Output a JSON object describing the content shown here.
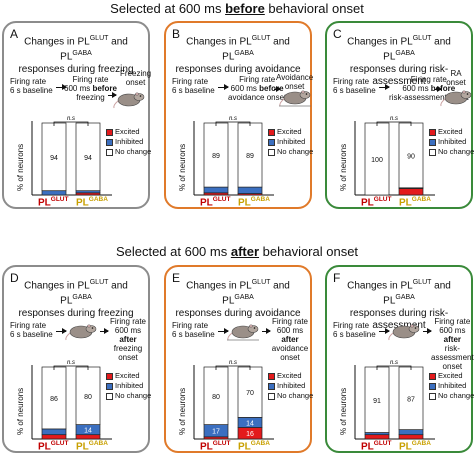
{
  "colors": {
    "excited": "#e31a1c",
    "inhibited": "#3b6fc0",
    "nochange": "#ffffff",
    "glut": "#c00000",
    "gaba": "#c8a000",
    "freeze_border": "#8c8c8c",
    "avoid_border": "#e07a2a",
    "risk_border": "#3a8a3a"
  },
  "section_top": {
    "pre": "Selected at 600 ms ",
    "bold": "before",
    "post": " behavioral onset"
  },
  "section_bottom": {
    "pre": "Selected at 600 ms ",
    "bold": "after",
    "post": " behavioral onset"
  },
  "common": {
    "firing_rate": "Firing rate",
    "baseline": "6 s baseline",
    "ms600": "600 ms",
    "ylabel": "% of neurons",
    "ns": "n.s",
    "excited": "Excited",
    "inhibited": "Inhibited",
    "nochange": "No change",
    "pl": "PL",
    "glut": "GLUT",
    "gaba": "GABA",
    "changes_in": "Changes in PL",
    "and_pl": " and PL",
    "firing_rate_line": "Firing rate",
    "before": "before",
    "after": "after"
  },
  "panels": [
    {
      "id": "A",
      "t2": "responses during freezing",
      "mid2": "freezing",
      "onset": "Freezing onset",
      "kind": "freeze",
      "when": "before",
      "icon": "freezing-rat-icon"
    },
    {
      "id": "B",
      "t2": "responses during avoidance",
      "mid2": "avoidance onset",
      "onset": "Avoidance onset",
      "kind": "avoid",
      "when": "before",
      "icon": "avoiding-rat-icon"
    },
    {
      "id": "C",
      "t2": "responses during risk-assessment",
      "mid2": "risk-assessment onset",
      "onset": "RA onset",
      "kind": "risk",
      "when": "before",
      "icon": "risk-assessment-rat-icon"
    },
    {
      "id": "D",
      "t2": "responses during freezing",
      "mid2": "freezing onset",
      "onset": "",
      "kind": "freeze",
      "when": "after",
      "icon": "freezing-rat-icon"
    },
    {
      "id": "E",
      "t2": "responses during avoidance",
      "mid2": "avoidance onset",
      "onset": "",
      "kind": "avoid",
      "when": "after",
      "icon": "avoiding-rat-icon"
    },
    {
      "id": "F",
      "t2": "responses during risk-assessment",
      "mid2": "risk-assessment onset",
      "onset": "",
      "kind": "risk",
      "when": "after",
      "icon": "risk-assessment-rat-icon"
    }
  ],
  "chart_data": [
    {
      "panel": "A",
      "type": "bar",
      "stacked": true,
      "categories": [
        "PLGLUT",
        "PLGABA"
      ],
      "series": [
        {
          "name": "Excited",
          "values": [
            0,
            3
          ]
        },
        {
          "name": "Inhibited",
          "values": [
            6,
            3
          ]
        },
        {
          "name": "No change",
          "values": [
            94,
            94
          ]
        }
      ],
      "labels": [
        [
          "",
          "6",
          "94"
        ],
        [
          "",
          "",
          "94"
        ]
      ],
      "ylim": [
        0,
        100
      ]
    },
    {
      "panel": "B",
      "type": "bar",
      "stacked": true,
      "categories": [
        "PLGLUT",
        "PLGABA"
      ],
      "series": [
        {
          "name": "Excited",
          "values": [
            3,
            2
          ]
        },
        {
          "name": "Inhibited",
          "values": [
            8,
            9
          ]
        },
        {
          "name": "No change",
          "values": [
            89,
            89
          ]
        }
      ],
      "labels": [
        [
          "",
          "8",
          "89"
        ],
        [
          "",
          "9",
          "89"
        ]
      ],
      "ylim": [
        0,
        100
      ]
    },
    {
      "panel": "C",
      "type": "bar",
      "stacked": true,
      "categories": [
        "PLGLUT",
        "PLGABA"
      ],
      "series": [
        {
          "name": "Excited",
          "values": [
            0,
            9
          ]
        },
        {
          "name": "Inhibited",
          "values": [
            0,
            1
          ]
        },
        {
          "name": "No change",
          "values": [
            100,
            90
          ]
        }
      ],
      "labels": [
        [
          "",
          "",
          "100"
        ],
        [
          "9",
          "1",
          "90"
        ]
      ],
      "ylim": [
        0,
        100
      ]
    },
    {
      "panel": "D",
      "type": "bar",
      "stacked": true,
      "categories": [
        "PLGLUT",
        "PLGABA"
      ],
      "series": [
        {
          "name": "Excited",
          "values": [
            6,
            6
          ]
        },
        {
          "name": "Inhibited",
          "values": [
            8,
            14
          ]
        },
        {
          "name": "No change",
          "values": [
            86,
            80
          ]
        }
      ],
      "labels": [
        [
          "6",
          "8",
          "86"
        ],
        [
          "6",
          "14",
          "80"
        ]
      ],
      "ylim": [
        0,
        100
      ]
    },
    {
      "panel": "E",
      "type": "bar",
      "stacked": true,
      "categories": [
        "PLGLUT",
        "PLGABA"
      ],
      "series": [
        {
          "name": "Excited",
          "values": [
            3,
            16
          ]
        },
        {
          "name": "Inhibited",
          "values": [
            17,
            14
          ]
        },
        {
          "name": "No change",
          "values": [
            80,
            70
          ]
        }
      ],
      "labels": [
        [
          "3",
          "17",
          "80"
        ],
        [
          "16",
          "14",
          "70"
        ]
      ],
      "ylim": [
        0,
        100
      ]
    },
    {
      "panel": "F",
      "type": "bar",
      "stacked": true,
      "categories": [
        "PLGLUT",
        "PLGABA"
      ],
      "series": [
        {
          "name": "Excited",
          "values": [
            6,
            6
          ]
        },
        {
          "name": "Inhibited",
          "values": [
            3,
            7
          ]
        },
        {
          "name": "No change",
          "values": [
            91,
            87
          ]
        }
      ],
      "labels": [
        [
          "6",
          "3",
          "91"
        ],
        [
          "6",
          "7",
          "87"
        ]
      ],
      "ylim": [
        0,
        100
      ]
    }
  ]
}
